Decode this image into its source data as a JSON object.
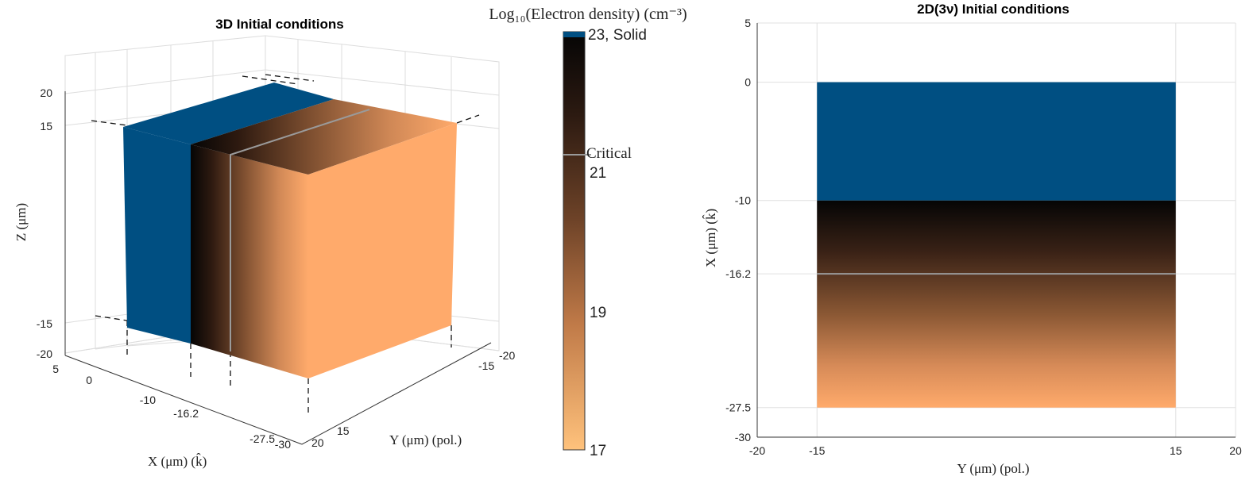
{
  "colors": {
    "solid": "#004f82",
    "density_low": "#ffaa6b",
    "density_high": "#050505",
    "critical_line": "#9a9a9a"
  },
  "chart_data": [
    {
      "type": "3d-surface",
      "title": "3D Initial conditions",
      "xlabel": "X (μm) (k̂)",
      "ylabel": "Y (μm) (pol.)",
      "zlabel": "Z (μm)",
      "x_ticks": [
        "5",
        "0",
        "-10",
        "-16.2",
        "-27.5",
        "-30"
      ],
      "y_ticks": [
        "-20",
        "-15",
        "15",
        "20"
      ],
      "z_ticks": [
        "20",
        "15",
        "-15",
        "-20"
      ],
      "regions": [
        {
          "name": "Solid",
          "x_range": [
            0,
            -10
          ],
          "log_density": 23
        },
        {
          "name": "Gradient",
          "x_range": [
            -10,
            -27.5
          ],
          "log_density_range": [
            23,
            17
          ]
        }
      ],
      "critical_x": -16.2,
      "y_extent": [
        -15,
        15
      ],
      "z_extent": [
        -15,
        15
      ],
      "grid": true
    },
    {
      "type": "colorbar",
      "title": "Log₁₀(Electron density) (cm⁻³)",
      "range": [
        17,
        23
      ],
      "ticks": [
        {
          "value": 23,
          "label": "23, Solid"
        },
        {
          "value": 21,
          "label": "21"
        },
        {
          "value": 19,
          "label": "19"
        },
        {
          "value": 17,
          "label": "17"
        }
      ],
      "critical_value": 21.6,
      "critical_label": "Critical"
    },
    {
      "type": "heatmap",
      "title": "2D(3ν) Initial conditions",
      "xlabel": "Y (μm) (pol.)",
      "ylabel": "X (μm) (k̂)",
      "xlim": [
        -20,
        20
      ],
      "ylim": [
        -30,
        5
      ],
      "x_ticks": [
        -20,
        -15,
        15,
        20
      ],
      "y_ticks": [
        5,
        0,
        -10,
        -16.2,
        -27.5,
        -30
      ],
      "regions": [
        {
          "name": "Solid",
          "y_range": [
            -15,
            15
          ],
          "x_range": [
            0,
            -10
          ],
          "log_density": 23
        },
        {
          "name": "Gradient",
          "y_range": [
            -15,
            15
          ],
          "x_range": [
            -10,
            -27.5
          ],
          "log_density_range": [
            23,
            17
          ]
        }
      ],
      "critical_x": -16.2,
      "grid": true
    }
  ]
}
